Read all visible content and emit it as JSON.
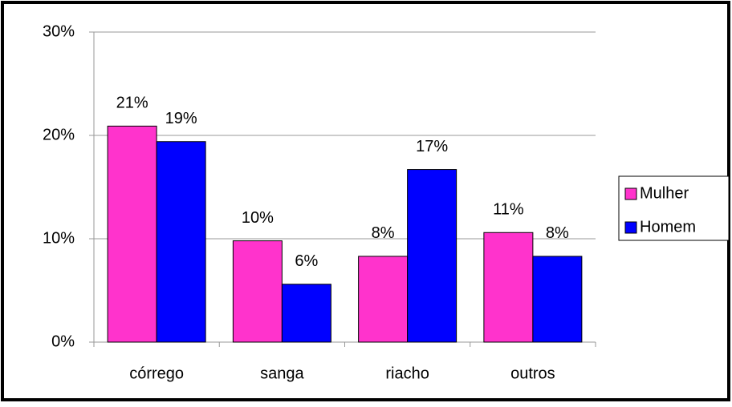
{
  "chart_data": {
    "type": "bar",
    "categories": [
      "córrego",
      "sanga",
      "riacho",
      "outros"
    ],
    "series": [
      {
        "name": "Mulher",
        "color": "#ff33cc",
        "values": [
          20.9,
          9.8,
          8.3,
          10.6
        ],
        "value_labels": [
          "21%",
          "10%",
          "8%",
          "11%"
        ]
      },
      {
        "name": "Homem",
        "color": "#0000ff",
        "values": [
          19.4,
          5.6,
          16.7,
          8.3
        ],
        "value_labels": [
          "19%",
          "6%",
          "17%",
          "8%"
        ]
      }
    ],
    "ylim": [
      0,
      30
    ],
    "yticks": [
      {
        "value": 0,
        "label": "0%"
      },
      {
        "value": 10,
        "label": "10%"
      },
      {
        "value": 20,
        "label": "20%"
      },
      {
        "value": 30,
        "label": "30%"
      }
    ],
    "grid": true,
    "legend": "right"
  }
}
